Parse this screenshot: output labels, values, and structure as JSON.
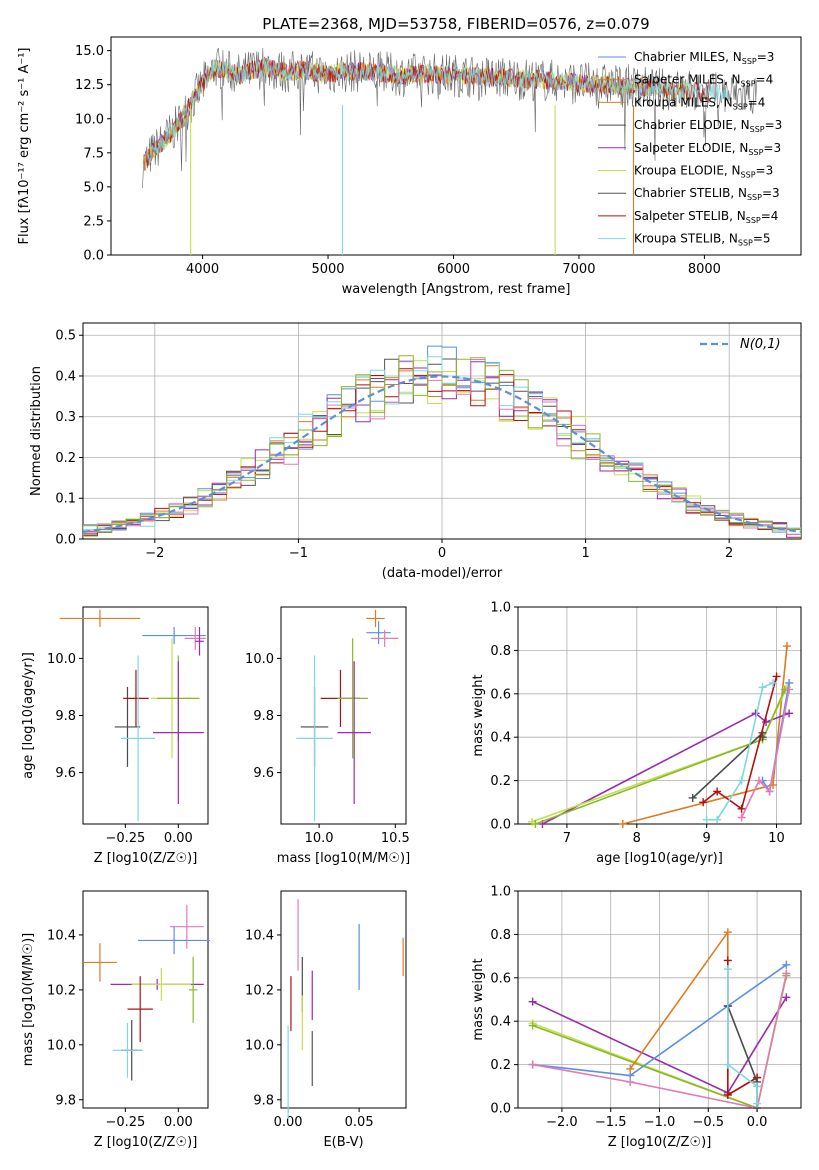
{
  "colors": {
    "chabrier_miles": "#5a8ee8",
    "salpeter_miles": "#e07a1f",
    "kroupa_miles": "#d4821e",
    "chabrier_elodie": "#4a4a4a",
    "salpeter_elodie": "#9a2bb0",
    "kroupa_elodie": "#c6e04a",
    "chabrier_stelib": "#555555",
    "salpeter_stelib": "#b01010",
    "kroupa_stelib": "#7fd8e0",
    "pink": "#e27ab8",
    "olive": "#8ab82a",
    "normal": "#5b8fd6",
    "grid": "#b0b0b0"
  },
  "chart_data": [
    {
      "id": "spectrum",
      "type": "line",
      "title": "PLATE=2368, MJD=53758, FIBERID=0576, z=0.079",
      "xlabel": "wavelength [Angstrom, rest frame]",
      "ylabel": "Flux [fλ10⁻¹⁷ erg cm⁻² s⁻¹ A⁻¹]",
      "xlim": [
        3270,
        8770
      ],
      "ylim": [
        0,
        16
      ],
      "xticks": [
        4000,
        5000,
        6000,
        7000,
        8000
      ],
      "yticks": [
        0.0,
        2.5,
        5.0,
        7.5,
        10.0,
        12.5,
        15.0
      ],
      "grid": false,
      "legend_position": "top-right",
      "legend": [
        "Chabrier MILES, N_SSP=3",
        "Salpeter MILES, N_SSP=4",
        "Kroupa MILES, N_SSP=4",
        "Chabrier ELODIE, N_SSP=3",
        "Salpeter ELODIE, N_SSP=3",
        "Kroupa ELODIE, N_SSP=3",
        "Chabrier STELIB, N_SSP=3",
        "Salpeter STELIB, N_SSP=4",
        "Kroupa STELIB, N_SSP=5"
      ],
      "x": [
        3520,
        3600,
        3700,
        3800,
        3900,
        4000,
        4100,
        4200,
        4300,
        4400,
        4500,
        4600,
        4700,
        4800,
        4900,
        5000,
        5200,
        5400,
        5600,
        5800,
        6000,
        6200,
        6400,
        6600,
        6800,
        7000,
        7200,
        7400,
        7600,
        7800,
        8000,
        8200,
        8400
      ],
      "y": [
        6.5,
        7.5,
        8.5,
        9.5,
        11.0,
        12.5,
        13.8,
        13.5,
        13.2,
        13.6,
        13.8,
        13.5,
        13.4,
        13.6,
        13.4,
        13.3,
        13.5,
        13.4,
        13.2,
        13.3,
        13.2,
        13.1,
        13.0,
        12.9,
        12.8,
        12.6,
        12.5,
        12.4,
        12.2,
        12.1,
        11.9,
        11.8,
        11.7
      ]
    },
    {
      "id": "residuals",
      "type": "bar",
      "xlabel": "(data-model)/error",
      "ylabel": "Normed distribution",
      "xlim": [
        -2.5,
        2.5
      ],
      "ylim": [
        0,
        0.53
      ],
      "xticks": [
        -2,
        -1,
        0,
        1,
        2
      ],
      "yticks": [
        0.0,
        0.1,
        0.2,
        0.3,
        0.4,
        0.5
      ],
      "grid": true,
      "legend_position": "top-right",
      "legend": [
        "N(0,1)"
      ],
      "bin_width": 0.1,
      "gaussian": {
        "mu": 0,
        "sigma": 1
      }
    },
    {
      "id": "age_vs_Z",
      "type": "scatter",
      "xlabel": "Z [log10(Z/Z☉)]",
      "ylabel": "age  [log10(age/yr)]",
      "xlim": [
        -0.45,
        0.14
      ],
      "ylim": [
        9.42,
        10.18
      ],
      "xticks": [
        -0.25,
        0.0
      ],
      "yticks": [
        9.6,
        9.8,
        10.0
      ],
      "points": [
        {
          "color": "salpeter_miles",
          "x": -0.37,
          "y": 10.14,
          "xerr": 0.19,
          "yerr": 0.03
        },
        {
          "color": "chabrier_miles",
          "x": -0.02,
          "y": 10.08,
          "xerr": 0.15,
          "yerr": 0.03
        },
        {
          "color": "pink",
          "x": 0.08,
          "y": 10.07,
          "xerr": 0.05,
          "yerr": 0.04
        },
        {
          "color": "salpeter_elodie",
          "x": 0.1,
          "y": 10.06,
          "xerr": 0.02,
          "yerr": 0.05
        },
        {
          "color": "salpeter_stelib",
          "x": -0.2,
          "y": 9.86,
          "xerr": 0.06,
          "yerr": 0.1
        },
        {
          "color": "kroupa_elodie",
          "x": -0.03,
          "y": 9.86,
          "xerr": 0.1,
          "yerr": 0.21
        },
        {
          "color": "olive",
          "x": 0.0,
          "y": 9.86,
          "xerr": 0.1,
          "yerr": 0.15
        },
        {
          "color": "salpeter_elodie",
          "x": 0.0,
          "y": 9.74,
          "xerr": 0.12,
          "yerr": 0.25
        },
        {
          "color": "chabrier_elodie",
          "x": -0.24,
          "y": 9.76,
          "xerr": 0.06,
          "yerr": 0.14
        },
        {
          "color": "kroupa_stelib",
          "x": -0.19,
          "y": 9.72,
          "xerr": 0.08,
          "yerr": 0.29
        }
      ]
    },
    {
      "id": "age_vs_mass",
      "type": "scatter",
      "xlabel": "mass [log10(M/M☉)]",
      "ylabel": "",
      "xlim": [
        9.75,
        10.57
      ],
      "ylim": [
        9.42,
        10.18
      ],
      "xticks": [
        10.0,
        10.5
      ],
      "yticks": [
        9.6,
        9.8,
        10.0
      ],
      "points": [
        {
          "color": "salpeter_miles",
          "x": 10.37,
          "y": 10.14,
          "xerr": 0.06,
          "yerr": 0.03
        },
        {
          "color": "chabrier_miles",
          "x": 10.39,
          "y": 10.09,
          "xerr": 0.08,
          "yerr": 0.04
        },
        {
          "color": "pink",
          "x": 10.43,
          "y": 10.07,
          "xerr": 0.09,
          "yerr": 0.03
        },
        {
          "color": "salpeter_stelib",
          "x": 10.14,
          "y": 9.86,
          "xerr": 0.13,
          "yerr": 0.1
        },
        {
          "color": "olive",
          "x": 10.22,
          "y": 9.86,
          "xerr": 0.1,
          "yerr": 0.21
        },
        {
          "color": "salpeter_elodie",
          "x": 10.23,
          "y": 9.74,
          "xerr": 0.11,
          "yerr": 0.25
        },
        {
          "color": "chabrier_elodie",
          "x": 9.97,
          "y": 9.76,
          "xerr": 0.09,
          "yerr": 0.14
        },
        {
          "color": "kroupa_stelib",
          "x": 9.97,
          "y": 9.72,
          "xerr": 0.12,
          "yerr": 0.29
        }
      ]
    },
    {
      "id": "weight_vs_age",
      "type": "line",
      "xlabel": "age  [log10(age/yr)]",
      "ylabel": "mass weight",
      "xlim": [
        6.3,
        10.35
      ],
      "ylim": [
        0,
        1.0
      ],
      "xticks": [
        7,
        8,
        9,
        10
      ],
      "yticks": [
        0.0,
        0.2,
        0.4,
        0.6,
        0.8,
        1.0
      ],
      "grid": true,
      "series": [
        {
          "color": "salpeter_miles",
          "x": [
            7.8,
            9.95,
            10.15
          ],
          "y": [
            0.0,
            0.18,
            0.82
          ]
        },
        {
          "color": "salpeter_elodie",
          "x": [
            6.65,
            9.7,
            9.85,
            10.18
          ],
          "y": [
            0.0,
            0.51,
            0.47,
            0.51
          ]
        },
        {
          "color": "kroupa_elodie",
          "x": [
            6.5,
            9.8,
            10.15
          ],
          "y": [
            0.01,
            0.39,
            0.63
          ]
        },
        {
          "color": "olive",
          "x": [
            6.55,
            9.8,
            10.12
          ],
          "y": [
            0.0,
            0.39,
            0.62
          ]
        },
        {
          "color": "chabrier_elodie",
          "x": [
            8.8,
            9.8,
            9.8
          ],
          "y": [
            0.12,
            0.42,
            0.4
          ]
        },
        {
          "color": "salpeter_stelib",
          "x": [
            8.95,
            9.15,
            9.5,
            10.0
          ],
          "y": [
            0.1,
            0.15,
            0.07,
            0.68
          ]
        },
        {
          "color": "kroupa_stelib",
          "x": [
            9.0,
            9.15,
            9.5,
            9.8,
            9.95
          ],
          "y": [
            0.02,
            0.02,
            0.2,
            0.63,
            0.65
          ]
        },
        {
          "color": "chabrier_miles",
          "x": [
            9.8,
            9.9,
            10.18
          ],
          "y": [
            0.2,
            0.15,
            0.65
          ]
        },
        {
          "color": "pink",
          "x": [
            9.5,
            9.75,
            9.9,
            10.18
          ],
          "y": [
            0.03,
            0.2,
            0.15,
            0.62
          ]
        }
      ]
    },
    {
      "id": "mass_vs_Z",
      "type": "scatter",
      "xlabel": "Z [log10(Z/Z☉)]",
      "ylabel": "mass [log10(M/M☉)]",
      "xlim": [
        -0.45,
        0.14
      ],
      "ylim": [
        9.77,
        10.56
      ],
      "xticks": [
        -0.25,
        0.0
      ],
      "yticks": [
        9.8,
        10.0,
        10.2,
        10.4
      ],
      "points": [
        {
          "color": "pink",
          "x": 0.04,
          "y": 10.43,
          "xerr": 0.08,
          "yerr": 0.08
        },
        {
          "color": "chabrier_miles",
          "x": -0.02,
          "y": 10.38,
          "xerr": 0.17,
          "yerr": 0.05
        },
        {
          "color": "salpeter_miles",
          "x": -0.37,
          "y": 10.3,
          "xerr": 0.08,
          "yerr": 0.07
        },
        {
          "color": "salpeter_elodie",
          "x": -0.1,
          "y": 10.22,
          "xerr": 0.22,
          "yerr": 0.02
        },
        {
          "color": "kroupa_elodie",
          "x": -0.08,
          "y": 10.22,
          "xerr": 0.14,
          "yerr": 0.06
        },
        {
          "color": "olive",
          "x": 0.07,
          "y": 10.2,
          "xerr": 0.02,
          "yerr": 0.12
        },
        {
          "color": "salpeter_stelib",
          "x": -0.18,
          "y": 10.13,
          "xerr": 0.06,
          "yerr": 0.12
        },
        {
          "color": "chabrier_elodie",
          "x": -0.22,
          "y": 9.98,
          "xerr": 0.05,
          "yerr": 0.11
        },
        {
          "color": "kroupa_stelib",
          "x": -0.24,
          "y": 9.98,
          "xerr": 0.07,
          "yerr": 0.1
        }
      ]
    },
    {
      "id": "mass_vs_ebv",
      "type": "scatter",
      "xlabel": "E(B-V)",
      "ylabel": "",
      "xlim": [
        -0.005,
        0.083
      ],
      "ylim": [
        9.77,
        10.56
      ],
      "xticks": [
        0.0,
        0.05
      ],
      "yticks": [
        9.8,
        10.0,
        10.2,
        10.4
      ],
      "points": [
        {
          "color": "pink",
          "x": 0.007,
          "y": 10.4,
          "xerr": 0,
          "yerr": 0.13
        },
        {
          "color": "chabrier_miles",
          "x": 0.05,
          "y": 10.32,
          "xerr": 0,
          "yerr": 0.12
        },
        {
          "color": "salpeter_miles",
          "x": 0.081,
          "y": 10.32,
          "xerr": 0,
          "yerr": 0.07
        },
        {
          "color": "chabrier_elodie",
          "x": 0.01,
          "y": 10.22,
          "xerr": 0,
          "yerr": 0.1
        },
        {
          "color": "salpeter_elodie",
          "x": 0.017,
          "y": 10.18,
          "xerr": 0,
          "yerr": 0.09
        },
        {
          "color": "salpeter_stelib",
          "x": 0.002,
          "y": 10.15,
          "xerr": 0,
          "yerr": 0.1
        },
        {
          "color": "kroupa_elodie",
          "x": 0.01,
          "y": 10.08,
          "xerr": 0,
          "yerr": 0.1
        },
        {
          "color": "chabrier_stelib",
          "x": 0.017,
          "y": 9.95,
          "xerr": 0,
          "yerr": 0.1
        },
        {
          "color": "kroupa_stelib",
          "x": 0.0,
          "y": 9.9,
          "xerr": 0,
          "yerr": 0.17
        }
      ]
    },
    {
      "id": "weight_vs_Z",
      "type": "line",
      "xlabel": "Z [log10(Z/Z☉)]",
      "ylabel": "mass weight",
      "xlim": [
        -2.45,
        0.45
      ],
      "ylim": [
        0,
        1.0
      ],
      "xticks": [
        -2.0,
        -1.5,
        -1.0,
        -0.5,
        0.0
      ],
      "yticks": [
        0.0,
        0.2,
        0.4,
        0.6,
        0.8,
        1.0
      ],
      "grid": true,
      "series": [
        {
          "color": "salpeter_elodie",
          "x": [
            -2.3,
            -0.3,
            0.3
          ],
          "y": [
            0.49,
            0.07,
            0.51
          ]
        },
        {
          "color": "kroupa_elodie",
          "x": [
            -2.3,
            0.0,
            0.3
          ],
          "y": [
            0.39,
            0.0,
            0.62
          ]
        },
        {
          "color": "olive",
          "x": [
            -2.3,
            0.0,
            0.3
          ],
          "y": [
            0.38,
            0.0,
            0.61
          ]
        },
        {
          "color": "chabrier_miles",
          "x": [
            -2.3,
            -1.3,
            -0.3,
            0.3
          ],
          "y": [
            0.2,
            0.15,
            0.47,
            0.66
          ]
        },
        {
          "color": "pink",
          "x": [
            -2.3,
            -1.3,
            0.0,
            0.3
          ],
          "y": [
            0.2,
            0.12,
            0.0,
            0.62
          ]
        },
        {
          "color": "salpeter_miles",
          "x": [
            -1.3,
            -0.3,
            -0.3,
            0.0
          ],
          "y": [
            0.18,
            0.81,
            0.06,
            0.14
          ]
        },
        {
          "color": "salpeter_stelib",
          "x": [
            -0.3,
            -0.3,
            0.0
          ],
          "y": [
            0.68,
            0.06,
            0.14
          ]
        },
        {
          "color": "chabrier_elodie",
          "x": [
            -0.3,
            0.0,
            0.0
          ],
          "y": [
            0.47,
            0.12,
            0.0
          ]
        },
        {
          "color": "kroupa_stelib",
          "x": [
            -0.3,
            -0.3,
            0.0,
            0.0
          ],
          "y": [
            0.64,
            0.2,
            0.1,
            0.02
          ]
        }
      ]
    }
  ]
}
